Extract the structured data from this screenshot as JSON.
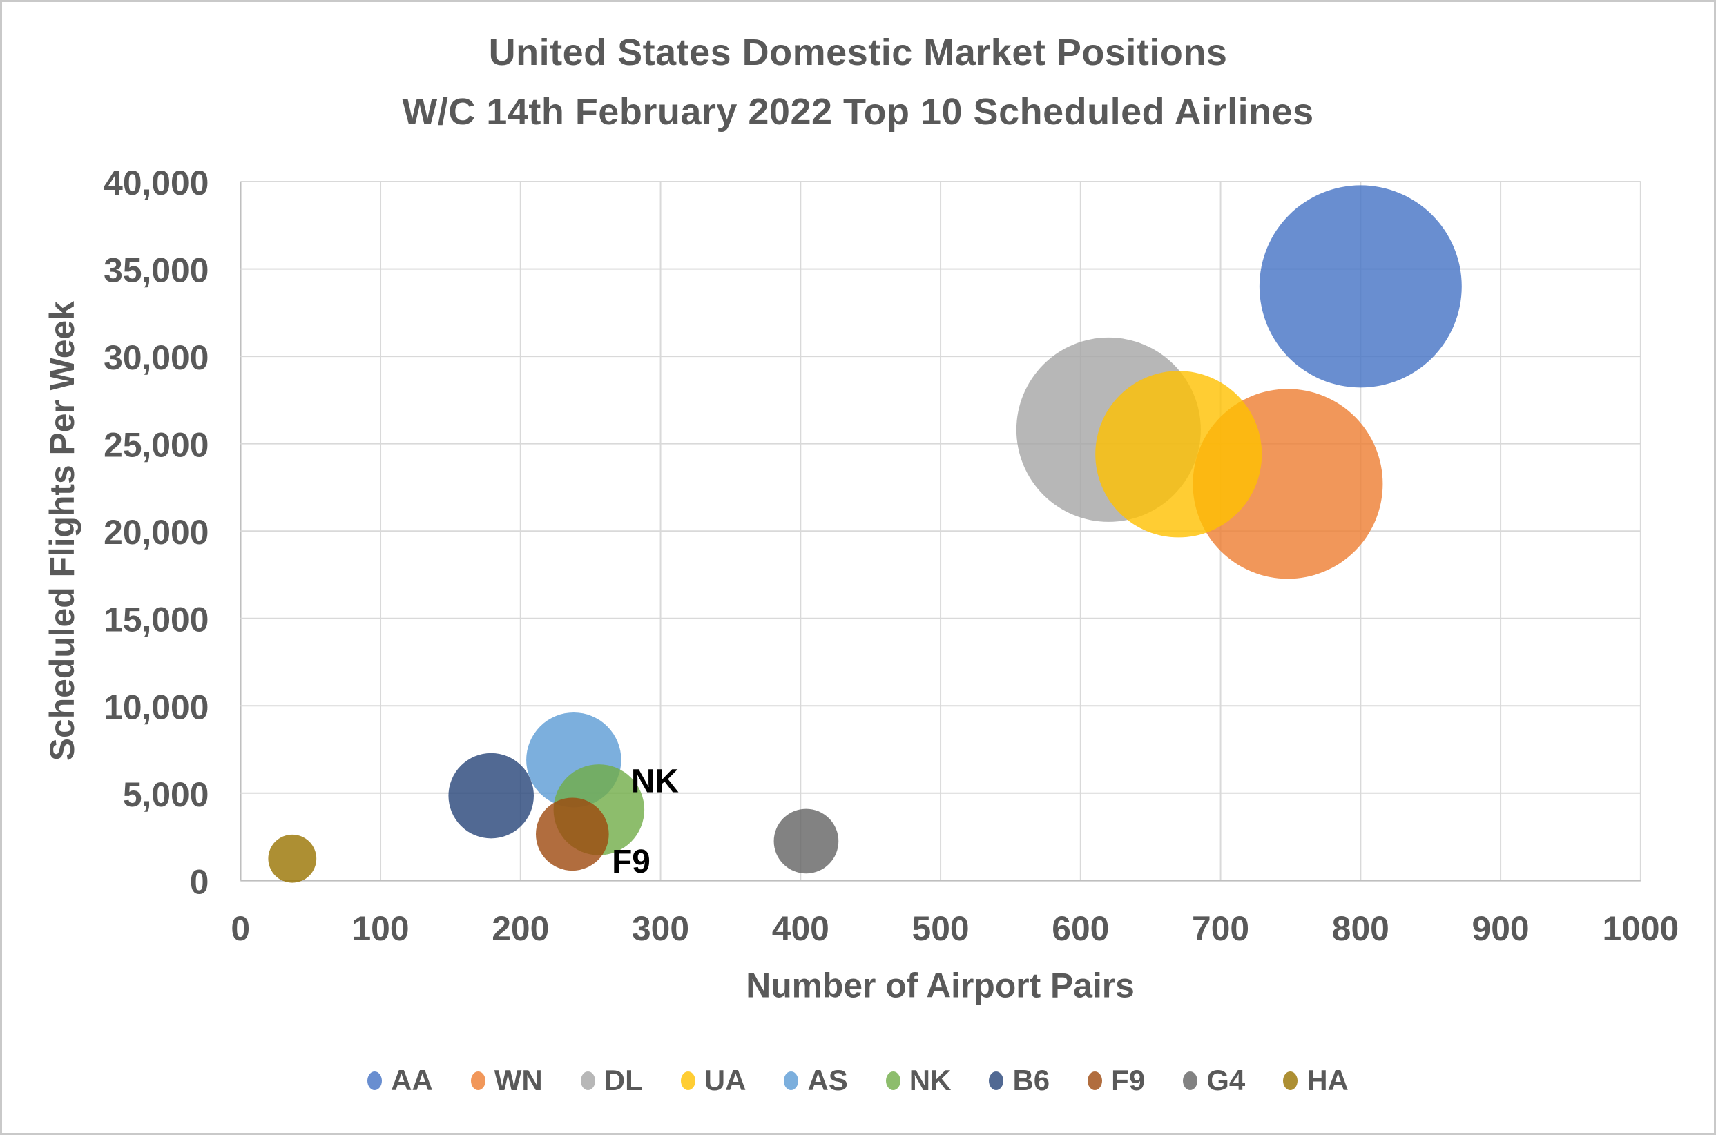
{
  "chart_data": {
    "type": "scatter",
    "subtype": "bubble",
    "title_lines": [
      "United States Domestic Market Positions",
      "W/C 14th February 2022 Top 10 Scheduled Airlines"
    ],
    "xlabel": "Number of Airport Pairs",
    "ylabel": "Scheduled Flights Per Week",
    "xlim": [
      0,
      1000
    ],
    "ylim": [
      0,
      40000
    ],
    "x_tick_interval": 100,
    "y_tick_interval": 5000,
    "x_tick_labels": [
      "0",
      "100",
      "200",
      "300",
      "400",
      "500",
      "600",
      "700",
      "800",
      "900",
      "1000"
    ],
    "y_tick_labels": [
      "0",
      "5,000",
      "10,000",
      "15,000",
      "20,000",
      "25,000",
      "30,000",
      "35,000",
      "40,000"
    ],
    "grid": true,
    "legend_position": "bottom",
    "series": [
      {
        "name": "AA",
        "airport_pairs": 800,
        "flights_per_week": 34000,
        "color": "#4472C4",
        "bubble_radius_px": 147
      },
      {
        "name": "WN",
        "airport_pairs": 748,
        "flights_per_week": 22700,
        "color": "#ED7D31",
        "bubble_radius_px": 138
      },
      {
        "name": "DL",
        "airport_pairs": 620,
        "flights_per_week": 25800,
        "color": "#A5A5A5",
        "bubble_radius_px": 134
      },
      {
        "name": "UA",
        "airport_pairs": 670,
        "flights_per_week": 24400,
        "color": "#FFC000",
        "bubble_radius_px": 121
      },
      {
        "name": "AS",
        "airport_pairs": 238,
        "flights_per_week": 6900,
        "color": "#5B9BD5",
        "bubble_radius_px": 69
      },
      {
        "name": "NK",
        "airport_pairs": 256,
        "flights_per_week": 4050,
        "color": "#70AD47",
        "bubble_radius_px": 66
      },
      {
        "name": "B6",
        "airport_pairs": 179,
        "flights_per_week": 4850,
        "color": "#264478",
        "bubble_radius_px": 62
      },
      {
        "name": "F9",
        "airport_pairs": 237,
        "flights_per_week": 2650,
        "color": "#9E480E",
        "bubble_radius_px": 53
      },
      {
        "name": "G4",
        "airport_pairs": 404,
        "flights_per_week": 2250,
        "color": "#636363",
        "bubble_radius_px": 47
      },
      {
        "name": "HA",
        "airport_pairs": 37,
        "flights_per_week": 1250,
        "color": "#997300",
        "bubble_radius_px": 35
      }
    ],
    "annotations": [
      {
        "text": "NK",
        "x": 296,
        "y": 5670
      },
      {
        "text": "F9",
        "x": 279,
        "y": 1060
      }
    ]
  },
  "style": {
    "text_color": "#595959",
    "annotation_color": "#000000",
    "gridline_color": "#D9D9D9",
    "axis_line_color": "#BFBFBF",
    "bubble_opacity": 0.8,
    "background": "#FFFFFF",
    "border_color": "#C9C9C9"
  }
}
